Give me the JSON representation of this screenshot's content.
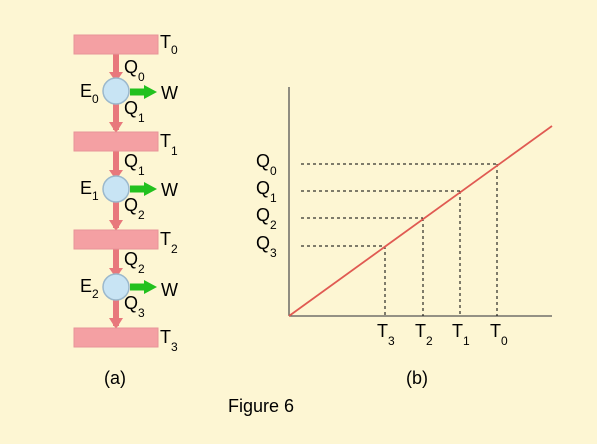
{
  "figure_caption": "Figure 6",
  "panel_a": {
    "label": "(a)",
    "reservoirs": [
      {
        "letter": "T",
        "index": "0"
      },
      {
        "letter": "T",
        "index": "1"
      },
      {
        "letter": "T",
        "index": "2"
      },
      {
        "letter": "T",
        "index": "3"
      }
    ],
    "engines": [
      {
        "letter": "E",
        "index": "0",
        "heat_in": {
          "letter": "Q",
          "index": "0"
        },
        "heat_out": {
          "letter": "Q",
          "index": "1"
        },
        "work": "W"
      },
      {
        "letter": "E",
        "index": "1",
        "heat_in": {
          "letter": "Q",
          "index": "1"
        },
        "heat_out": {
          "letter": "Q",
          "index": "2"
        },
        "work": "W"
      },
      {
        "letter": "E",
        "index": "2",
        "heat_in": {
          "letter": "Q",
          "index": "2"
        },
        "heat_out": {
          "letter": "Q",
          "index": "3"
        },
        "work": "W"
      }
    ],
    "colors": {
      "reservoir": "#f4a0a3",
      "arrow": "#e8787c",
      "engine_fill": "#c8e4f4",
      "engine_stroke": "#9bb8cc",
      "work_arrow": "#22c11e"
    }
  },
  "panel_b": {
    "label": "(b)",
    "line_color": "#e05a52",
    "y_labels": [
      {
        "letter": "Q",
        "index": "0"
      },
      {
        "letter": "Q",
        "index": "1"
      },
      {
        "letter": "Q",
        "index": "2"
      },
      {
        "letter": "Q",
        "index": "3"
      }
    ],
    "x_labels": [
      {
        "letter": "T",
        "index": "3"
      },
      {
        "letter": "T",
        "index": "2"
      },
      {
        "letter": "T",
        "index": "1"
      },
      {
        "letter": "T",
        "index": "0"
      }
    ]
  }
}
